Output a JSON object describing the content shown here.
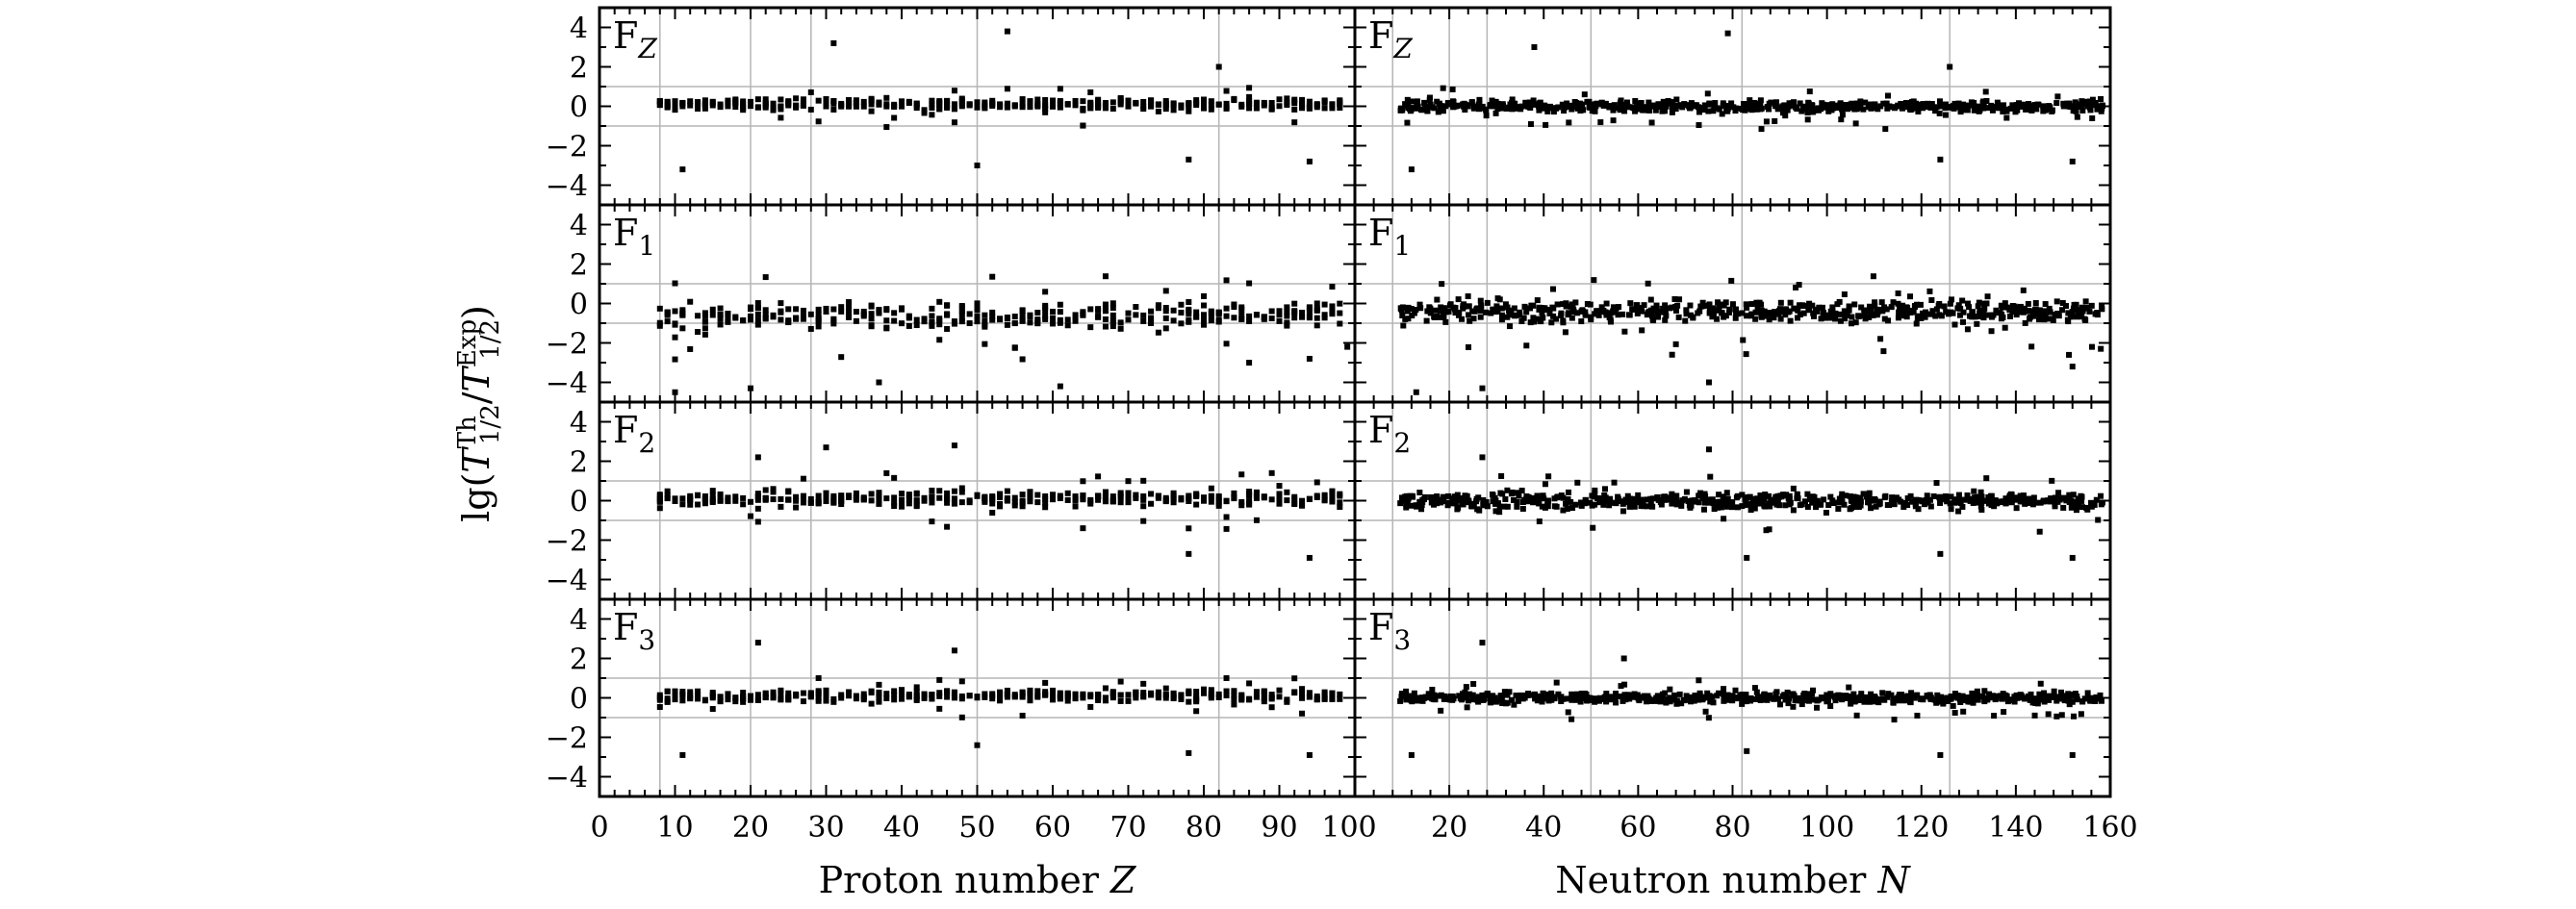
{
  "chart_data": {
    "type": "scatter",
    "ylabel": "lg(T1/2Th/T1/2Exp)",
    "ylim": [
      -5,
      5
    ],
    "yticks": [
      -4,
      -2,
      0,
      2,
      4
    ],
    "grid_y": [
      -1,
      1
    ],
    "rows": [
      "FZ",
      "F1",
      "F2",
      "F3"
    ],
    "row_tags": [
      {
        "base": "F",
        "sub": "Z",
        "sub_italic": true
      },
      {
        "base": "F",
        "sub": "1",
        "sub_italic": false
      },
      {
        "base": "F",
        "sub": "2",
        "sub_italic": false
      },
      {
        "base": "F",
        "sub": "3",
        "sub_italic": false
      }
    ],
    "columns": [
      {
        "xlabel": "Proton number Z",
        "xlabel_text": "Proton number ",
        "xlabel_var": "Z",
        "xlim": [
          0,
          100
        ],
        "xticks": [
          0,
          10,
          20,
          30,
          40,
          50,
          60,
          70,
          80,
          90,
          100
        ],
        "magic_lines": [
          8,
          20,
          28,
          50,
          82
        ],
        "range": [
          8,
          98
        ]
      },
      {
        "xlabel": "Neutron number N",
        "xlabel_text": "Neutron number ",
        "xlabel_var": "N",
        "xlim": [
          0,
          160
        ],
        "xticks": [
          20,
          40,
          60,
          80,
          100,
          120,
          140,
          160
        ],
        "magic_lines": [
          8,
          20,
          28,
          50,
          82,
          126
        ],
        "range": [
          10,
          158
        ]
      }
    ],
    "series_profile": [
      {
        "row": "FZ",
        "column": "Z",
        "center": 0.1,
        "spread": 0.5,
        "outliers": [
          {
            "x": 11,
            "y": -3.2
          },
          {
            "x": 31,
            "y": 3.2
          },
          {
            "x": 54,
            "y": 3.8
          },
          {
            "x": 50,
            "y": -3.0
          },
          {
            "x": 78,
            "y": -2.7
          },
          {
            "x": 94,
            "y": -2.8
          },
          {
            "x": 82,
            "y": 2.0
          }
        ]
      },
      {
        "row": "FZ",
        "column": "N",
        "center": 0.0,
        "spread": 0.5,
        "outliers": [
          {
            "x": 12,
            "y": -3.2
          },
          {
            "x": 38,
            "y": 3.0
          },
          {
            "x": 79,
            "y": 3.7
          },
          {
            "x": 126,
            "y": 2.0
          },
          {
            "x": 152,
            "y": -2.8
          },
          {
            "x": 124,
            "y": -2.7
          }
        ]
      },
      {
        "row": "F1",
        "column": "Z",
        "center": -0.6,
        "spread": 1.1,
        "outliers": [
          {
            "x": 10,
            "y": -4.5
          },
          {
            "x": 20,
            "y": -4.3
          },
          {
            "x": 37,
            "y": -4.0
          },
          {
            "x": 61,
            "y": -4.2
          },
          {
            "x": 99,
            "y": -2.2
          }
        ]
      },
      {
        "row": "F1",
        "column": "N",
        "center": -0.4,
        "spread": 1.0,
        "outliers": [
          {
            "x": 13,
            "y": -4.5
          },
          {
            "x": 27,
            "y": -4.3
          },
          {
            "x": 75,
            "y": -4.0
          },
          {
            "x": 152,
            "y": -3.2
          },
          {
            "x": 158,
            "y": -2.3
          }
        ]
      },
      {
        "row": "F2",
        "column": "Z",
        "center": 0.1,
        "spread": 0.7,
        "outliers": [
          {
            "x": 30,
            "y": 2.7
          },
          {
            "x": 47,
            "y": 2.8
          },
          {
            "x": 78,
            "y": -2.7
          },
          {
            "x": 94,
            "y": -2.9
          },
          {
            "x": 21,
            "y": 2.2
          }
        ]
      },
      {
        "row": "F2",
        "column": "N",
        "center": 0.0,
        "spread": 0.7,
        "outliers": [
          {
            "x": 27,
            "y": 2.2
          },
          {
            "x": 75,
            "y": 2.6
          },
          {
            "x": 83,
            "y": -2.9
          },
          {
            "x": 152,
            "y": -2.9
          },
          {
            "x": 124,
            "y": -2.7
          }
        ]
      },
      {
        "row": "F3",
        "column": "Z",
        "center": 0.1,
        "spread": 0.5,
        "outliers": [
          {
            "x": 11,
            "y": -2.9
          },
          {
            "x": 21,
            "y": 2.8
          },
          {
            "x": 78,
            "y": -2.8
          },
          {
            "x": 94,
            "y": -2.9
          },
          {
            "x": 50,
            "y": -2.4
          },
          {
            "x": 47,
            "y": 2.4
          }
        ]
      },
      {
        "row": "F3",
        "column": "N",
        "center": 0.0,
        "spread": 0.5,
        "outliers": [
          {
            "x": 12,
            "y": -2.9
          },
          {
            "x": 27,
            "y": 2.8
          },
          {
            "x": 57,
            "y": 2.0
          },
          {
            "x": 83,
            "y": -2.7
          },
          {
            "x": 152,
            "y": -2.9
          },
          {
            "x": 124,
            "y": -2.9
          }
        ]
      }
    ]
  }
}
